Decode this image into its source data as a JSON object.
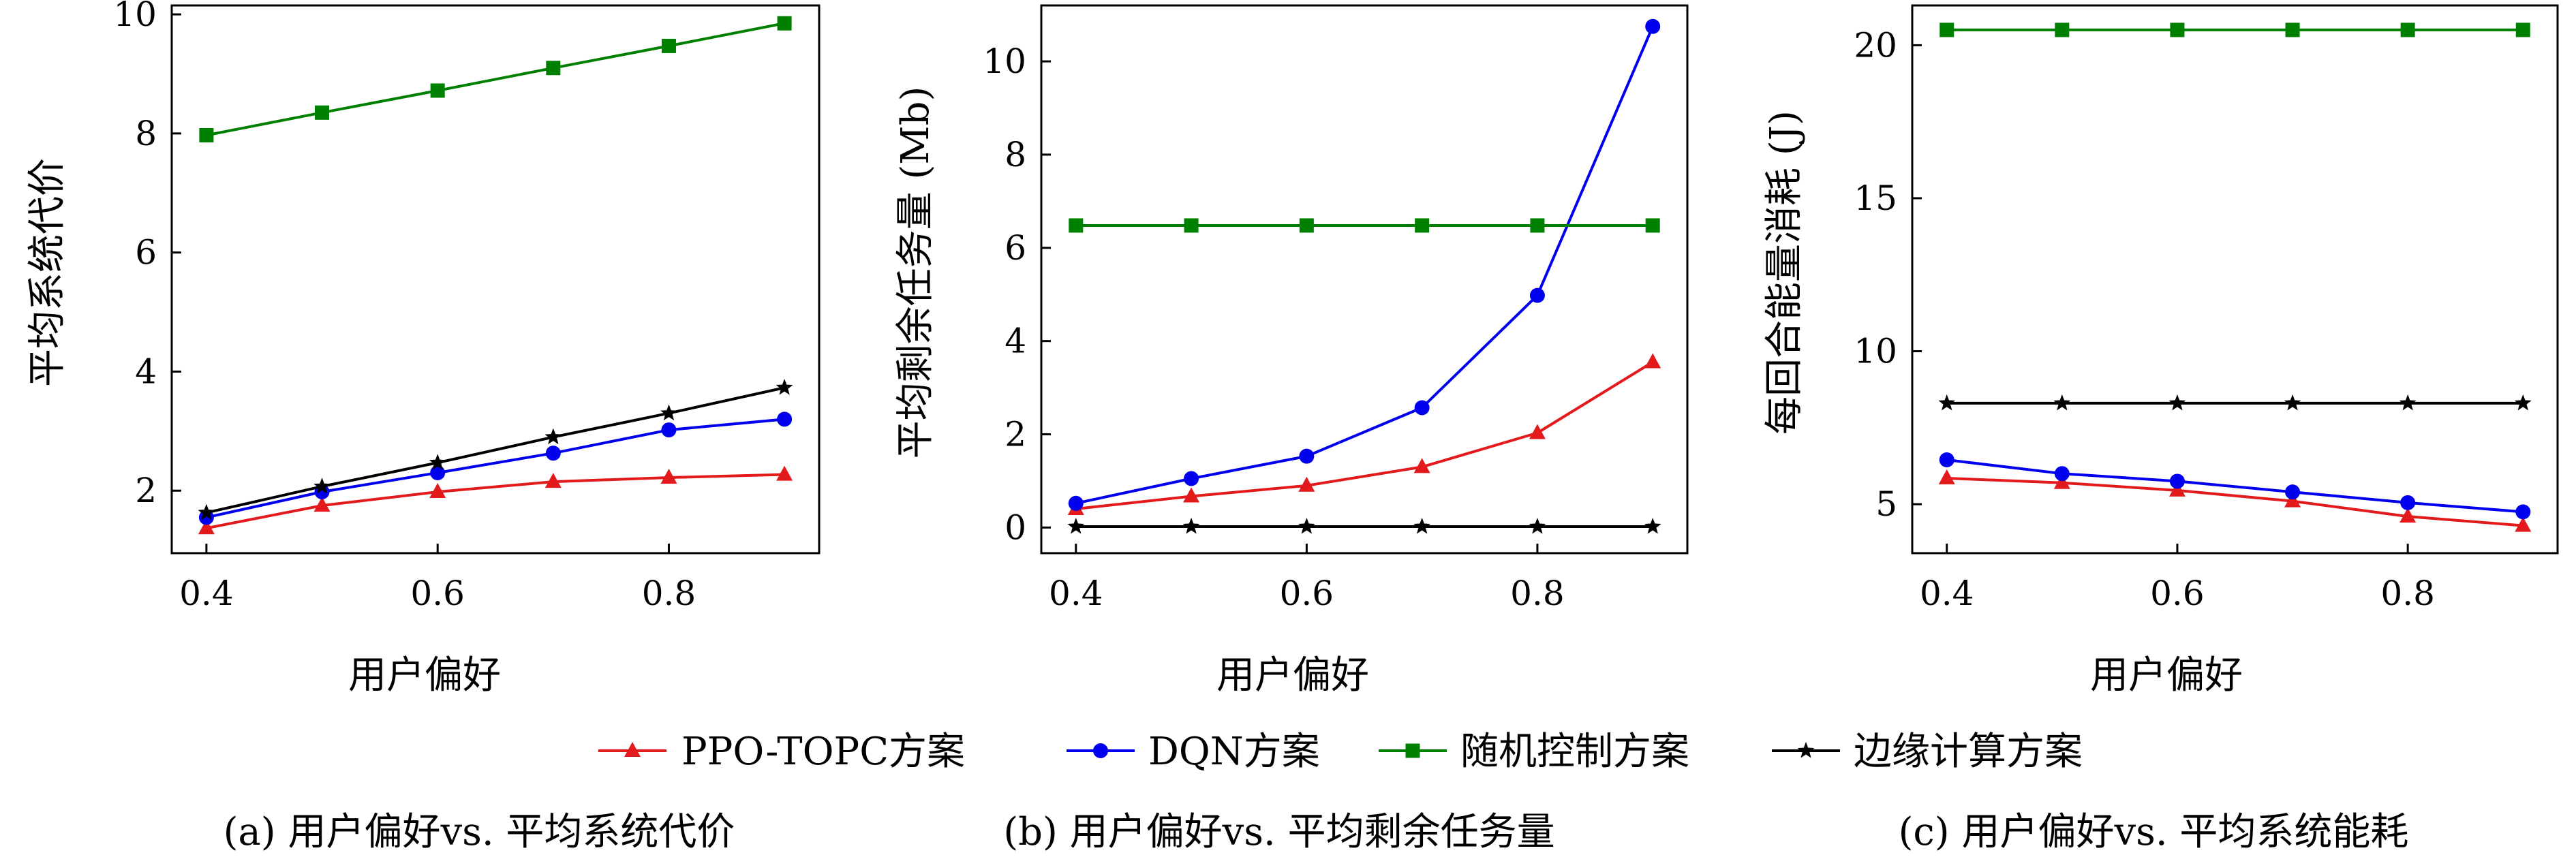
{
  "colors": {
    "ppo": "#e31a1c",
    "dqn": "#0000ee",
    "random": "#008000",
    "edge": "#000000"
  },
  "legend": [
    {
      "key": "ppo",
      "label": "PPO-TOPC方案",
      "marker": "triangle"
    },
    {
      "key": "dqn",
      "label": "DQN方案",
      "marker": "circle"
    },
    {
      "key": "random",
      "label": "随机控制方案",
      "marker": "square"
    },
    {
      "key": "edge",
      "label": "边缘计算方案",
      "marker": "star"
    }
  ],
  "chart_data": [
    {
      "type": "line",
      "caption": "(a) 用户偏好vs. 平均系统代价",
      "xlabel": "用户偏好",
      "ylabel": "平均系统代价",
      "xlim": [
        0.37,
        0.93
      ],
      "ylim": [
        0.95,
        10.15
      ],
      "xticks": [
        0.4,
        0.6,
        0.8
      ],
      "xtick_labels": [
        "0.4",
        "0.6",
        "0.8"
      ],
      "yticks": [
        2,
        4,
        6,
        8,
        10
      ],
      "ytick_labels": [
        "2",
        "4",
        "6",
        "8",
        "10"
      ],
      "grid": false,
      "x": [
        0.4,
        0.5,
        0.6,
        0.7,
        0.8,
        0.9
      ],
      "series": [
        {
          "key": "ppo",
          "name": "PPO-TOPC方案",
          "values": [
            1.37,
            1.75,
            1.98,
            2.15,
            2.22,
            2.27
          ]
        },
        {
          "key": "dqn",
          "name": "DQN方案",
          "values": [
            1.55,
            1.98,
            2.3,
            2.63,
            3.02,
            3.2
          ]
        },
        {
          "key": "random",
          "name": "随机控制方案",
          "values": [
            7.97,
            8.35,
            8.72,
            9.1,
            9.47,
            9.85
          ]
        },
        {
          "key": "edge",
          "name": "边缘计算方案",
          "values": [
            1.63,
            2.07,
            2.47,
            2.9,
            3.3,
            3.73
          ]
        }
      ]
    },
    {
      "type": "line",
      "caption": "(b) 用户偏好vs. 平均剩余任务量",
      "xlabel": "用户偏好",
      "ylabel": "平均剩余任务量 (Mb)",
      "xlim": [
        0.37,
        0.93
      ],
      "ylim": [
        -0.55,
        11.2
      ],
      "xticks": [
        0.4,
        0.6,
        0.8
      ],
      "xtick_labels": [
        "0.4",
        "0.6",
        "0.8"
      ],
      "yticks": [
        0,
        2,
        4,
        6,
        8,
        10
      ],
      "ytick_labels": [
        "0",
        "2",
        "4",
        "6",
        "8",
        "10"
      ],
      "grid": false,
      "x": [
        0.4,
        0.5,
        0.6,
        0.7,
        0.8,
        0.9
      ],
      "series": [
        {
          "key": "ppo",
          "name": "PPO-TOPC方案",
          "values": [
            0.4,
            0.67,
            0.9,
            1.3,
            2.03,
            3.55
          ]
        },
        {
          "key": "dqn",
          "name": "DQN方案",
          "values": [
            0.52,
            1.05,
            1.53,
            2.57,
            4.98,
            10.75
          ]
        },
        {
          "key": "random",
          "name": "随机控制方案",
          "values": [
            6.48,
            6.48,
            6.48,
            6.48,
            6.48,
            6.48
          ]
        },
        {
          "key": "edge",
          "name": "边缘计算方案",
          "values": [
            0.02,
            0.02,
            0.02,
            0.02,
            0.02,
            0.02
          ]
        }
      ]
    },
    {
      "type": "line",
      "caption": "(c) 用户偏好vs. 平均系统能耗",
      "xlabel": "用户偏好",
      "ylabel": "每回合能量消耗 (J)",
      "xlim": [
        0.37,
        0.93
      ],
      "ylim": [
        3.4,
        21.3
      ],
      "xticks": [
        0.4,
        0.6,
        0.8
      ],
      "xtick_labels": [
        "0.4",
        "0.6",
        "0.8"
      ],
      "yticks": [
        5,
        10,
        15,
        20
      ],
      "ytick_labels": [
        "5",
        "10",
        "15",
        "20"
      ],
      "grid": false,
      "x": [
        0.4,
        0.5,
        0.6,
        0.7,
        0.8,
        0.9
      ],
      "series": [
        {
          "key": "ppo",
          "name": "PPO-TOPC方案",
          "values": [
            5.85,
            5.7,
            5.45,
            5.1,
            4.6,
            4.3
          ]
        },
        {
          "key": "dqn",
          "name": "DQN方案",
          "values": [
            6.45,
            6.0,
            5.75,
            5.4,
            5.05,
            4.75
          ]
        },
        {
          "key": "random",
          "name": "随机控制方案",
          "values": [
            20.5,
            20.5,
            20.5,
            20.5,
            20.5,
            20.5
          ]
        },
        {
          "key": "edge",
          "name": "边缘计算方案",
          "values": [
            8.3,
            8.3,
            8.3,
            8.3,
            8.3,
            8.3
          ]
        }
      ]
    }
  ]
}
